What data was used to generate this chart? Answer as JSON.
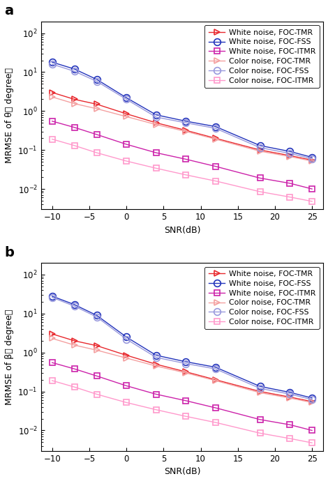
{
  "snr": [
    -10,
    -7,
    -4,
    0,
    4,
    8,
    12,
    18,
    22,
    25
  ],
  "panel_a": {
    "white_TMR": [
      3.0,
      2.0,
      1.5,
      0.85,
      0.5,
      0.32,
      0.2,
      0.1,
      0.072,
      0.055
    ],
    "white_FSS": [
      18.0,
      12.0,
      6.5,
      2.2,
      0.8,
      0.55,
      0.4,
      0.13,
      0.092,
      0.065
    ],
    "white_ITMR": [
      0.55,
      0.38,
      0.25,
      0.14,
      0.085,
      0.058,
      0.038,
      0.019,
      0.014,
      0.01
    ],
    "color_TMR": [
      2.3,
      1.55,
      1.15,
      0.72,
      0.45,
      0.3,
      0.19,
      0.093,
      0.068,
      0.052
    ],
    "color_FSS": [
      16.0,
      10.5,
      5.8,
      2.0,
      0.7,
      0.5,
      0.36,
      0.115,
      0.082,
      0.06
    ],
    "color_ITMR": [
      0.19,
      0.13,
      0.085,
      0.052,
      0.034,
      0.023,
      0.016,
      0.0085,
      0.0062,
      0.0048
    ]
  },
  "panel_b": {
    "white_TMR": [
      3.0,
      2.0,
      1.5,
      0.85,
      0.5,
      0.32,
      0.2,
      0.1,
      0.072,
      0.055
    ],
    "white_FSS": [
      28.0,
      17.0,
      9.0,
      2.5,
      0.85,
      0.58,
      0.42,
      0.135,
      0.095,
      0.068
    ],
    "white_ITMR": [
      0.55,
      0.38,
      0.25,
      0.14,
      0.085,
      0.058,
      0.038,
      0.019,
      0.014,
      0.01
    ],
    "color_TMR": [
      2.3,
      1.55,
      1.15,
      0.72,
      0.45,
      0.3,
      0.19,
      0.093,
      0.068,
      0.052
    ],
    "color_FSS": [
      26.0,
      15.5,
      8.2,
      2.2,
      0.75,
      0.52,
      0.38,
      0.12,
      0.086,
      0.062
    ],
    "color_ITMR": [
      0.19,
      0.13,
      0.085,
      0.052,
      0.034,
      0.023,
      0.016,
      0.0085,
      0.0062,
      0.0048
    ]
  },
  "colors": {
    "white_TMR": "#E8282D",
    "white_FSS": "#2233BB",
    "white_ITMR": "#CC22AA",
    "color_TMR": "#F4A0A0",
    "color_FSS": "#9999DD",
    "color_ITMR": "#FF99CC"
  },
  "legend_labels": [
    "White noise, FOC-TMR",
    "White noise, FOC-FSS",
    "White noise, FOC-ITMR",
    "Color noise, FOC-TMR",
    "Color noise, FOC-FSS",
    "Color noise, FOC-ITMR"
  ],
  "ylabel_a": "MRMSE of θ（ degree）",
  "ylabel_b": "MRMSE of β（ degree）",
  "xlabel": "SNR(dB)",
  "label_a": "a",
  "label_b": "b",
  "xlim": [
    -11.5,
    26.5
  ],
  "xticks": [
    -10,
    -5,
    0,
    5,
    10,
    15,
    20,
    25
  ],
  "ylim": [
    0.003,
    200
  ],
  "figsize": [
    4.7,
    6.9
  ],
  "dpi": 100
}
